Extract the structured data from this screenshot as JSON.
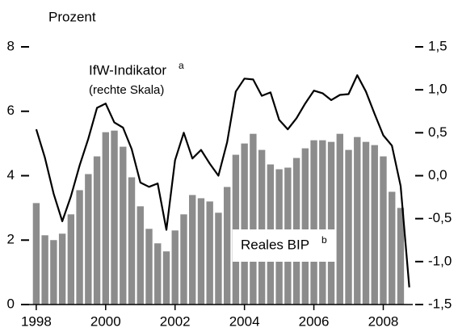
{
  "chart_data": {
    "type": "bar",
    "ylabel": "Prozent",
    "annotations": [
      {
        "text": "IfW-Indikator",
        "sup": "a"
      },
      {
        "text": "(rechte Skala)"
      },
      {
        "text": "Reales BIP",
        "sup": "b"
      }
    ],
    "x": [
      1998,
      1998.25,
      1998.5,
      1998.75,
      1999,
      1999.25,
      1999.5,
      1999.75,
      2000,
      2000.25,
      2000.5,
      2000.75,
      2001,
      2001.25,
      2001.5,
      2001.75,
      2002,
      2002.25,
      2002.5,
      2002.75,
      2003,
      2003.25,
      2003.5,
      2003.75,
      2004,
      2004.25,
      2004.5,
      2004.75,
      2005,
      2005.25,
      2005.5,
      2005.75,
      2006,
      2006.25,
      2006.5,
      2006.75,
      2007,
      2007.25,
      2007.5,
      2007.75,
      2008,
      2008.25,
      2008.5,
      2008.75
    ],
    "series": [
      {
        "name": "Reales BIP",
        "color": "#8c8c8c",
        "values": [
          3.15,
          2.15,
          2.0,
          2.2,
          2.8,
          3.55,
          4.05,
          4.6,
          5.35,
          5.4,
          4.9,
          3.95,
          3.05,
          2.35,
          1.9,
          1.65,
          2.3,
          2.8,
          3.4,
          3.3,
          3.2,
          2.85,
          3.65,
          4.65,
          5.0,
          5.3,
          4.8,
          4.35,
          4.2,
          4.25,
          4.55,
          4.85,
          5.1,
          5.1,
          5.05,
          5.3,
          4.8,
          5.2,
          5.05,
          4.95,
          4.6,
          3.5,
          3.0,
          null
        ]
      },
      {
        "name": "IfW-Indikator",
        "color": "#000000",
        "axis": "y2",
        "type": "line",
        "values": [
          0.54,
          0.21,
          -0.21,
          -0.53,
          -0.24,
          0.12,
          0.43,
          0.79,
          0.84,
          0.62,
          0.56,
          0.31,
          -0.08,
          -0.13,
          -0.09,
          -0.63,
          0.18,
          0.5,
          0.2,
          0.3,
          0.14,
          0.0,
          0.39,
          0.98,
          1.13,
          1.12,
          0.93,
          0.97,
          0.65,
          0.54,
          0.67,
          0.84,
          0.99,
          0.96,
          0.88,
          0.94,
          0.95,
          1.17,
          0.98,
          0.72,
          0.47,
          0.35,
          -0.12,
          -1.3
        ]
      }
    ],
    "xlim": [
      1997.7,
      2008.85
    ],
    "xticks": [
      1998,
      2000,
      2002,
      2004,
      2006,
      2008
    ],
    "ylim": [
      0,
      8
    ],
    "yticks": [
      0,
      2,
      4,
      6,
      8
    ],
    "y2lim": [
      -1.5,
      1.5
    ],
    "y2ticks": [
      {
        "value": 1.5,
        "label": "1,5"
      },
      {
        "value": 1.0,
        "label": "1,0"
      },
      {
        "value": 0.5,
        "label": "0,5"
      },
      {
        "value": 0.0,
        "label": "0,0"
      },
      {
        "value": -0.5,
        "label": "-0,5"
      },
      {
        "value": -1.0,
        "label": "-1,0"
      },
      {
        "value": -1.5,
        "label": "-1,5"
      }
    ]
  }
}
